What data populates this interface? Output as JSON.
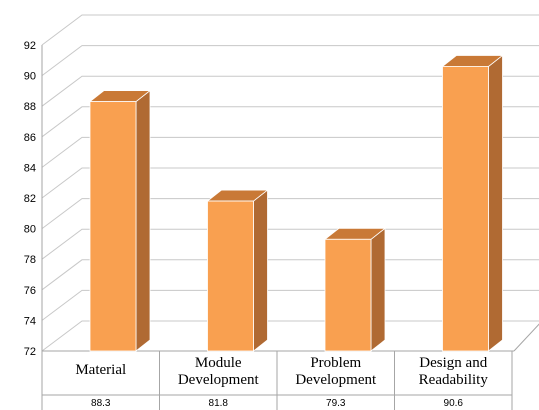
{
  "chart_data": {
    "type": "bar",
    "title": "",
    "xlabel": "",
    "ylabel": "",
    "categories": [
      "Material",
      "Module Development",
      "Problem Development",
      "Design and Readability"
    ],
    "category_lines": [
      [
        "Material"
      ],
      [
        "Module",
        "Development"
      ],
      [
        "Problem",
        "Development"
      ],
      [
        "Design and",
        "Readability"
      ]
    ],
    "values": [
      88.3,
      81.8,
      79.3,
      90.6
    ],
    "value_labels": [
      "88.3",
      "81.8",
      "79.3",
      "90.6"
    ],
    "ylim": [
      72,
      92
    ],
    "yticks": [
      "72",
      "74",
      "76",
      "78",
      "80",
      "82",
      "84",
      "86",
      "88",
      "90",
      "92"
    ],
    "grid": true,
    "bar_colors": {
      "front": "#F9A050",
      "side": "#B06A33",
      "top": "#C97936"
    },
    "data_table": true
  }
}
